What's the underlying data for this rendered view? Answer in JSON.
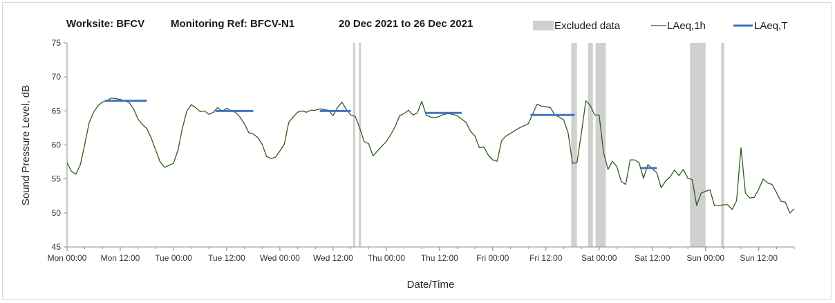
{
  "chart_data": {
    "type": "line",
    "header": {
      "worksite": "Worksite: BFCV",
      "monitoring_ref": "Monitoring Ref: BFCV-N1",
      "date_range": "20 Dec 2021 to 26 Dec 2021"
    },
    "xlabel": "Date/Time",
    "ylabel": "Sound Pressure Level, dB",
    "ylim": [
      45,
      75
    ],
    "yticks": [
      45,
      50,
      55,
      60,
      65,
      70,
      75
    ],
    "xlim_hours": [
      0,
      164
    ],
    "xticks": [
      {
        "hour": 0,
        "label": "Mon 00:00"
      },
      {
        "hour": 12,
        "label": "Mon 12:00"
      },
      {
        "hour": 24,
        "label": "Tue 00:00"
      },
      {
        "hour": 36,
        "label": "Tue 12:00"
      },
      {
        "hour": 48,
        "label": "Wed 00:00"
      },
      {
        "hour": 60,
        "label": "Wed 12:00"
      },
      {
        "hour": 72,
        "label": "Thu 00:00"
      },
      {
        "hour": 84,
        "label": "Thu 12:00"
      },
      {
        "hour": 96,
        "label": "Fri 00:00"
      },
      {
        "hour": 108,
        "label": "Fri 12:00"
      },
      {
        "hour": 120,
        "label": "Sat 00:00"
      },
      {
        "hour": 132,
        "label": "Sat 12:00"
      },
      {
        "hour": 144,
        "label": "Sun 00:00"
      },
      {
        "hour": 156,
        "label": "Sun 12:00"
      }
    ],
    "grid": false,
    "legend": {
      "position": "top-right",
      "excluded_label": "Excluded data",
      "hourly_label": "LAeq,1h",
      "period_label": "LAeq,T"
    },
    "colors": {
      "excluded": "#d0d0d0",
      "hourly": "#2e5c1e",
      "period": "#4472c4"
    },
    "excluded_periods": [
      {
        "start": 64.5,
        "end": 65.0
      },
      {
        "start": 65.8,
        "end": 66.3
      },
      {
        "start": 113.7,
        "end": 115.0
      },
      {
        "start": 117.5,
        "end": 118.6
      },
      {
        "start": 119.2,
        "end": 121.5
      },
      {
        "start": 140.5,
        "end": 144.0
      },
      {
        "start": 147.5,
        "end": 148.2
      }
    ],
    "series": [
      {
        "name": "LAeq,1h",
        "start_hour": 0,
        "step_hours": 1,
        "values": [
          57.4,
          56.1,
          55.7,
          57.1,
          60.1,
          63.3,
          64.8,
          65.8,
          66.3,
          66.5,
          66.9,
          66.8,
          66.7,
          66.5,
          66.2,
          65.3,
          63.8,
          63.0,
          62.4,
          61.0,
          59.2,
          57.5,
          56.7,
          57.0,
          57.3,
          59.2,
          62.4,
          65.0,
          65.9,
          65.5,
          64.9,
          65.0,
          64.5,
          64.8,
          65.5,
          64.9,
          65.4,
          65.0,
          64.8,
          64.1,
          63.1,
          61.8,
          61.6,
          61.1,
          60.1,
          58.3,
          58.0,
          58.2,
          59.1,
          60.1,
          63.3,
          64.1,
          64.8,
          65.0,
          64.8,
          65.1,
          65.1,
          65.3,
          65.2,
          65.1,
          64.3,
          65.5,
          66.3,
          65.2,
          64.4,
          64.2,
          62.5,
          60.5,
          60.2,
          58.4,
          59.1,
          59.8,
          60.5,
          61.5,
          62.7,
          64.3,
          64.6,
          65.1,
          64.4,
          64.7,
          66.4,
          64.4,
          64.1,
          64.0,
          64.2,
          64.5,
          64.6,
          64.5,
          64.3,
          63.8,
          63.3,
          62.0,
          61.3,
          59.6,
          59.7,
          58.5,
          57.8,
          57.6,
          60.6,
          61.3,
          61.7,
          62.1,
          62.5,
          62.8,
          63.1,
          64.5,
          66.0,
          65.7,
          65.6,
          65.5,
          64.4,
          64.1,
          63.7,
          61.8,
          57.3,
          57.4,
          61.7,
          66.5,
          65.8,
          64.4,
          64.4,
          58.9,
          56.4,
          57.6,
          56.8,
          54.6,
          54.2,
          57.8,
          57.8,
          57.4,
          55.1,
          57.1,
          56.5,
          55.9,
          53.7,
          54.7,
          55.3,
          56.3,
          55.5,
          56.4,
          55.1,
          54.9,
          51.1,
          52.9,
          53.2,
          53.4,
          51.1,
          51.1,
          51.2,
          51.2,
          50.5,
          51.8,
          59.6,
          52.9,
          52.2,
          52.3,
          53.5,
          55.0,
          54.4,
          54.2,
          53.0,
          51.7,
          51.6,
          50.0,
          50.6
        ]
      }
    ],
    "period_levels": [
      {
        "start": 8.5,
        "end": 18.0,
        "value": 66.5
      },
      {
        "start": 33.5,
        "end": 42.0,
        "value": 65.0
      },
      {
        "start": 57.0,
        "end": 64.0,
        "value": 65.0
      },
      {
        "start": 81.0,
        "end": 89.0,
        "value": 64.7
      },
      {
        "start": 104.5,
        "end": 114.5,
        "value": 64.4
      },
      {
        "start": 129.5,
        "end": 133.0,
        "value": 56.6
      }
    ]
  }
}
